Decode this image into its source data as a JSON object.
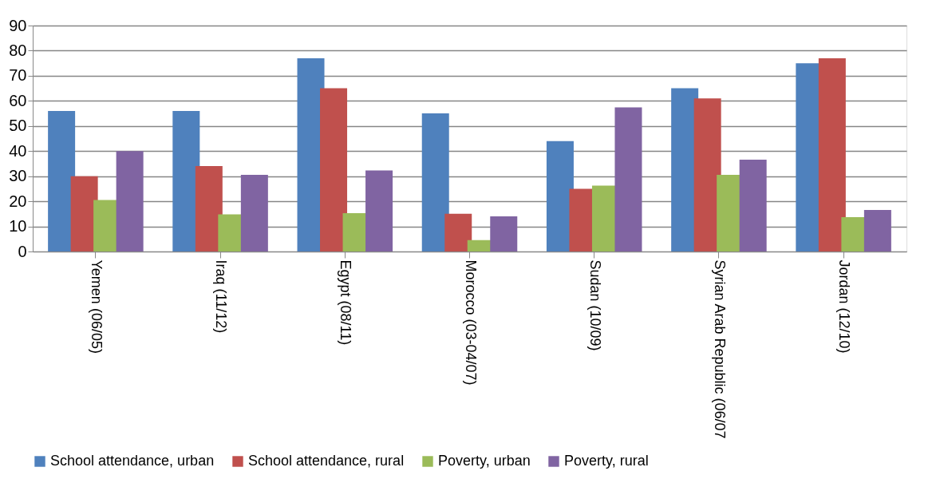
{
  "chart_data": {
    "type": "bar",
    "categories": [
      "Yemen (06/05)",
      "Iraq (11/12)",
      "Egypt (08/11)",
      "Morocco (03-04/07)",
      "Sudan (10/09)",
      "Syrian Arab Republic (06/07",
      "Jordan (12/10)"
    ],
    "series": [
      {
        "name": "School attendance, urban",
        "color": "#4f81bd",
        "values": [
          56,
          56,
          77,
          55,
          44,
          65,
          75
        ]
      },
      {
        "name": "School attendance, rural",
        "color": "#c0504d",
        "values": [
          30,
          34,
          65,
          15,
          25,
          61,
          77
        ]
      },
      {
        "name": "Poverty, urban",
        "color": "#9bbb59",
        "values": [
          20.5,
          14.8,
          15.3,
          4.5,
          26.2,
          30.5,
          13.7
        ]
      },
      {
        "name": "Poverty, rural",
        "color": "#8064a2",
        "values": [
          40,
          30.5,
          32.3,
          14,
          57.4,
          36.6,
          16.5
        ]
      }
    ],
    "ylim": [
      0,
      90
    ],
    "yticks": [
      0,
      10,
      20,
      30,
      40,
      50,
      60,
      70,
      80,
      90
    ],
    "grid": "y",
    "legend": "bottom"
  }
}
